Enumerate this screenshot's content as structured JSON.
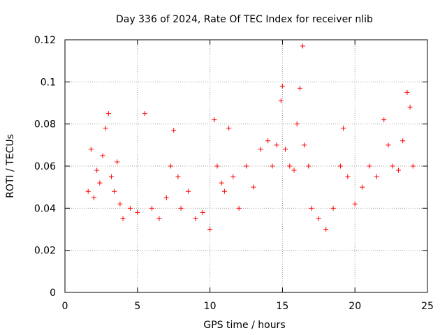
{
  "chart_data": {
    "type": "scatter",
    "title": "Day 336 of 2024, Rate Of TEC Index for receiver nlib",
    "xlabel": "GPS time / hours",
    "ylabel": "ROTI / TECUs",
    "xlim": [
      0,
      25
    ],
    "ylim": [
      0,
      0.12
    ],
    "x_ticks": [
      0,
      5,
      10,
      15,
      20,
      25
    ],
    "x_tick_labels": [
      "0",
      "5",
      "10",
      "15",
      "20",
      "25"
    ],
    "y_ticks": [
      0,
      0.02,
      0.04,
      0.06,
      0.08,
      0.1,
      0.12
    ],
    "y_tick_labels": [
      "0",
      "0.02",
      "0.04",
      "0.06",
      "0.08",
      "0.1",
      "0.12"
    ],
    "grid": true,
    "legend": "none",
    "marker": "+",
    "colors": {
      "points": "#ff0000",
      "grid": "#a0a0a0",
      "axes": "#000000"
    },
    "x": [
      1.6,
      1.8,
      2.0,
      2.2,
      2.4,
      2.6,
      2.8,
      3.0,
      3.2,
      3.4,
      3.6,
      3.8,
      4.0,
      4.5,
      5.0,
      5.5,
      6.0,
      6.5,
      7.0,
      7.3,
      7.5,
      7.8,
      8.0,
      8.5,
      9.0,
      9.5,
      10.0,
      10.3,
      10.5,
      10.8,
      11.0,
      11.3,
      11.6,
      12.0,
      12.5,
      13.0,
      13.5,
      14.0,
      14.3,
      14.6,
      14.9,
      15.0,
      15.2,
      15.5,
      15.8,
      16.0,
      16.2,
      16.4,
      16.5,
      16.8,
      17.0,
      17.5,
      18.0,
      18.5,
      19.0,
      19.2,
      19.5,
      20.0,
      20.5,
      21.0,
      21.5,
      22.0,
      22.3,
      22.6,
      23.0,
      23.3,
      23.6,
      23.8,
      24.0
    ],
    "y": [
      0.048,
      0.068,
      0.045,
      0.058,
      0.052,
      0.065,
      0.078,
      0.085,
      0.055,
      0.048,
      0.062,
      0.042,
      0.035,
      0.04,
      0.038,
      0.085,
      0.04,
      0.035,
      0.045,
      0.06,
      0.077,
      0.055,
      0.04,
      0.048,
      0.035,
      0.038,
      0.03,
      0.082,
      0.06,
      0.052,
      0.048,
      0.078,
      0.055,
      0.04,
      0.06,
      0.05,
      0.068,
      0.072,
      0.06,
      0.07,
      0.091,
      0.098,
      0.068,
      0.06,
      0.058,
      0.08,
      0.097,
      0.117,
      0.07,
      0.06,
      0.04,
      0.035,
      0.03,
      0.04,
      0.06,
      0.078,
      0.055,
      0.042,
      0.05,
      0.06,
      0.055,
      0.082,
      0.07,
      0.06,
      0.058,
      0.072,
      0.095,
      0.088,
      0.06
    ]
  }
}
